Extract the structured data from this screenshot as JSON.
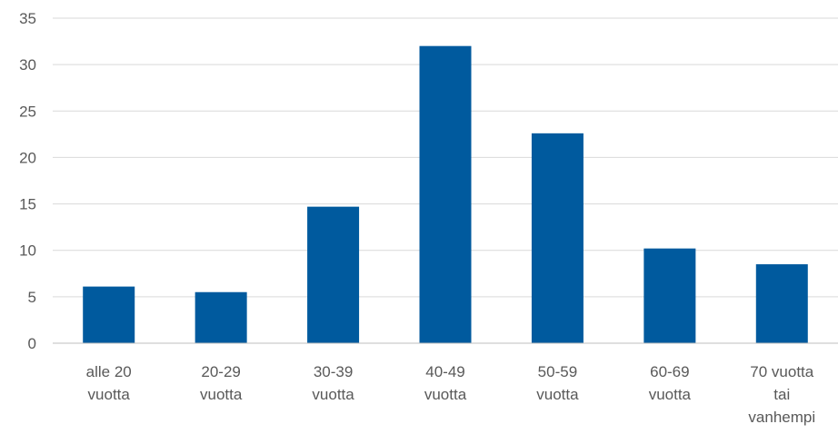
{
  "chart_data": {
    "type": "bar",
    "categories": [
      [
        "alle 20",
        "vuotta"
      ],
      [
        "20-29",
        "vuotta"
      ],
      [
        "30-39",
        "vuotta"
      ],
      [
        "40-49",
        "vuotta"
      ],
      [
        "50-59",
        "vuotta"
      ],
      [
        "60-69",
        "vuotta"
      ],
      [
        "70 vuotta",
        "tai",
        "vanhempi"
      ]
    ],
    "values": [
      6.1,
      5.5,
      14.7,
      32.0,
      22.6,
      10.2,
      8.5
    ],
    "ylim": [
      0,
      35
    ],
    "yticks": [
      0,
      5,
      10,
      15,
      20,
      25,
      30,
      35
    ],
    "grid": true,
    "legend": "none",
    "bar_color": "#005a9e",
    "title": "",
    "xlabel": "",
    "ylabel": ""
  }
}
